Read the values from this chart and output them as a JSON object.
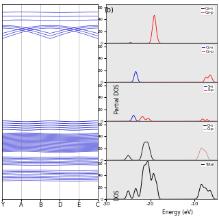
{
  "title_b": "(b)",
  "band_kpoints": [
    "Y",
    "A",
    "B",
    "D",
    "E",
    "C"
  ],
  "band_ylim": [
    -32,
    5
  ],
  "band_color": "#0000cc",
  "dos_xlim": [
    -30,
    -5
  ],
  "dos_ylim_partial": [
    0,
    65
  ],
  "dos_ylim_total": [
    0,
    65
  ],
  "partial_colors_s": [
    "black",
    "#0000cc",
    "#0000cc",
    "black"
  ],
  "partial_colors_p": [
    "red",
    "red",
    "red",
    "#cc8888"
  ],
  "partial_labels_s": [
    "Ca-s",
    "Cs-s",
    "S-s",
    "O-s"
  ],
  "partial_labels_p": [
    "Ca-p",
    "Cs-p",
    "S-p",
    "O-p"
  ],
  "total_label": "Total",
  "ylabel_partial": "Partial DOS",
  "ylabel_total": "DOS",
  "yticks": [
    0,
    20,
    40,
    60
  ],
  "background_color": "#e8e8e8"
}
